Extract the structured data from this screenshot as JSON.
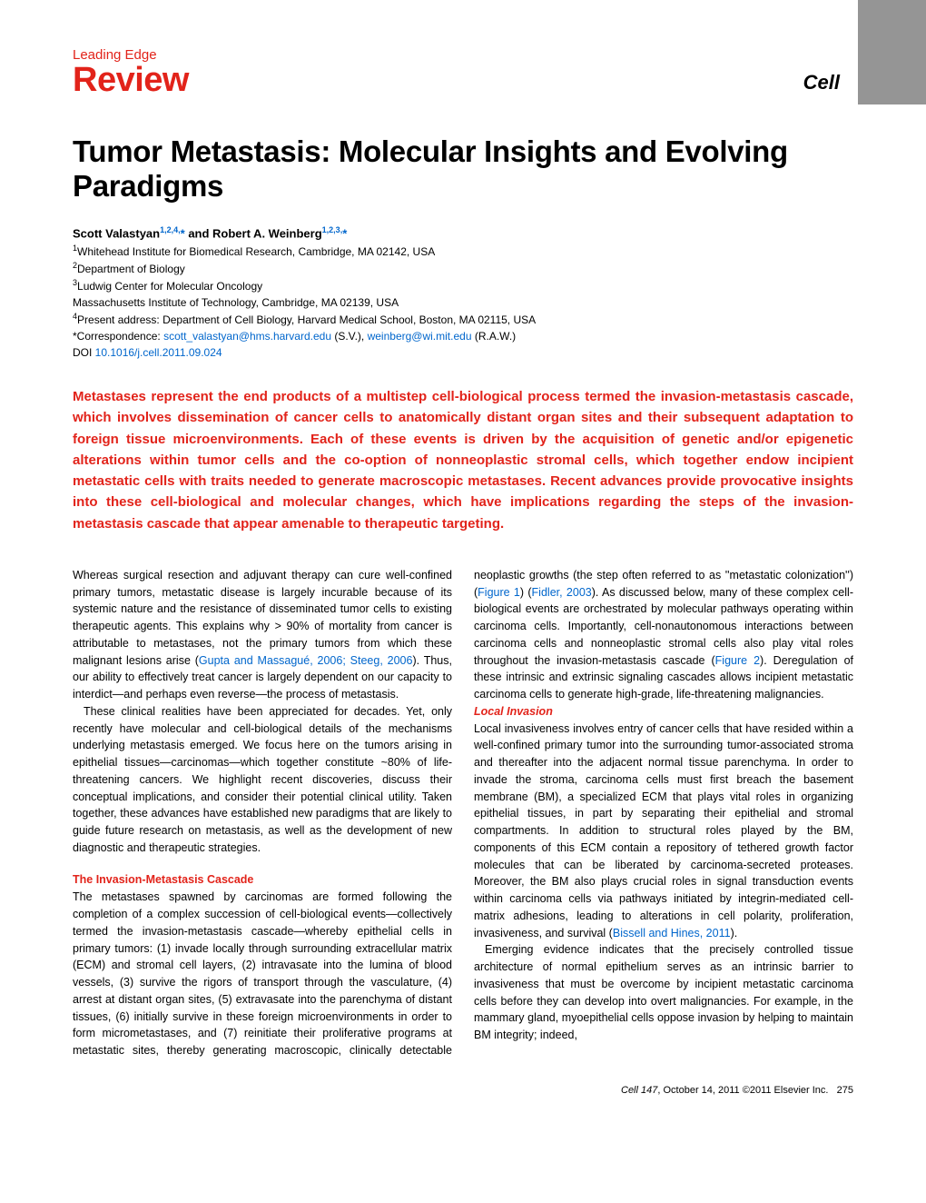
{
  "header": {
    "leading_edge": "Leading Edge",
    "review": "Review",
    "journal_logo": "Cell"
  },
  "title": "Tumor Metastasis: Molecular Insights and Evolving Paradigms",
  "authors_line": "Scott Valastyan",
  "authors_sup1": "1,2,4,",
  "authors_star1": "*",
  "authors_and": " and Robert A. Weinberg",
  "authors_sup2": "1,2,3,",
  "authors_star2": "*",
  "affiliations": {
    "l1_sup": "1",
    "l1": "Whitehead Institute for Biomedical Research, Cambridge, MA 02142, USA",
    "l2_sup": "2",
    "l2": "Department of Biology",
    "l3_sup": "3",
    "l3": "Ludwig Center for Molecular Oncology",
    "l4": "Massachusetts Institute of Technology, Cambridge, MA 02139, USA",
    "l5_sup": "4",
    "l5": "Present address: Department of Cell Biology, Harvard Medical School, Boston, MA 02115, USA",
    "l6_pre": "*Correspondence: ",
    "l6_email1": "scott_valastyan@hms.harvard.edu",
    "l6_mid": " (S.V.), ",
    "l6_email2": "weinberg@wi.mit.edu",
    "l6_post": " (R.A.W.)",
    "l7_pre": "DOI ",
    "l7_doi": "10.1016/j.cell.2011.09.024"
  },
  "abstract": "Metastases represent the end products of a multistep cell-biological process termed the invasion-metastasis cascade, which involves dissemination of cancer cells to anatomically distant organ sites and their subsequent adaptation to foreign tissue microenvironments. Each of these events is driven by the acquisition of genetic and/or epigenetic alterations within tumor cells and the co-option of nonneoplastic stromal cells, which together endow incipient metastatic cells with traits needed to generate macroscopic metastases. Recent advances provide provocative insights into these cell-biological and molecular changes, which have implications regarding the steps of the invasion-metastasis cascade that appear amenable to therapeutic targeting.",
  "body": {
    "p1a": "Whereas surgical resection and adjuvant therapy can cure well-confined primary tumors, metastatic disease is largely incurable because of its systemic nature and the resistance of disseminated tumor cells to existing therapeutic agents. This explains why > 90% of mortality from cancer is attributable to metastases, not the primary tumors from which these malignant lesions arise (",
    "p1_ref": "Gupta and Massagué, 2006; Steeg, 2006",
    "p1b": "). Thus, our ability to effectively treat cancer is largely dependent on our capacity to interdict—and perhaps even reverse—the process of metastasis.",
    "p2": "These clinical realities have been appreciated for decades. Yet, only recently have molecular and cell-biological details of the mechanisms underlying metastasis emerged. We focus here on the tumors arising in epithelial tissues—carcinomas—which together constitute ~80% of life-threatening cancers. We highlight recent discoveries, discuss their conceptual implications, and consider their potential clinical utility. Taken together, these advances have established new paradigms that are likely to guide future research on metastasis, as well as the development of new diagnostic and therapeutic strategies.",
    "sec1_head": "The Invasion-Metastasis Cascade",
    "p3a": "The metastases spawned by carcinomas are formed following the completion of a complex succession of cell-biological events—collectively termed the invasion-metastasis cascade—whereby epithelial cells in primary tumors: (1) invade locally through surrounding extracellular matrix (ECM) and stromal cell layers, (2) intravasate into the lumina of blood vessels, (3) survive the rigors of transport through the vasculature, (4) arrest at distant organ sites, (5) extravasate into the parenchyma of distant tissues, (6) initially survive in these foreign microenvironments in order to form micrometastases, and (7) reinitiate their proliferative programs at metastatic sites, thereby generating macroscopic, clinically detectable neoplastic growths (the step often referred to as ''metastatic colonization'') (",
    "p3_ref1": "Figure 1",
    "p3b": ") (",
    "p3_ref2": "Fidler, 2003",
    "p3c": "). As discussed below, many of these complex cell-biological events are orchestrated by molecular pathways operating within carcinoma cells. Importantly, cell-nonautonomous interactions between carcinoma cells and nonneoplastic stromal cells also play vital roles throughout the invasion-metastasis cascade (",
    "p3_ref3": "Figure 2",
    "p3d": "). Deregulation of these intrinsic and extrinsic signaling cascades allows incipient metastatic carcinoma cells to generate high-grade, life-threatening malignancies.",
    "sub1_head": "Local Invasion",
    "p4a": "Local invasiveness involves entry of cancer cells that have resided within a well-confined primary tumor into the surrounding tumor-associated stroma and thereafter into the adjacent normal tissue parenchyma. In order to invade the stroma, carcinoma cells must first breach the basement membrane (BM), a specialized ECM that plays vital roles in organizing epithelial tissues, in part by separating their epithelial and stromal compartments. In addition to structural roles played by the BM, components of this ECM contain a repository of tethered growth factor molecules that can be liberated by carcinoma-secreted proteases. Moreover, the BM also plays crucial roles in signal transduction events within carcinoma cells via pathways initiated by integrin-mediated cell-matrix adhesions, leading to alterations in cell polarity, proliferation, invasiveness, and survival (",
    "p4_ref": "Bissell and Hines, 2011",
    "p4b": ").",
    "p5": "Emerging evidence indicates that the precisely controlled tissue architecture of normal epithelium serves as an intrinsic barrier to invasiveness that must be overcome by incipient metastatic carcinoma cells before they can develop into overt malignancies. For example, in the mammary gland, myoepithelial cells oppose invasion by helping to maintain BM integrity; indeed,"
  },
  "footer": {
    "journal": "Cell",
    "volume_issue": " 147",
    "date": ", October 14, 2011 ©2011 Elsevier Inc.",
    "page": "275"
  },
  "colors": {
    "red": "#e2231a",
    "link_blue": "#0066cc",
    "gray_bar": "#959595"
  }
}
